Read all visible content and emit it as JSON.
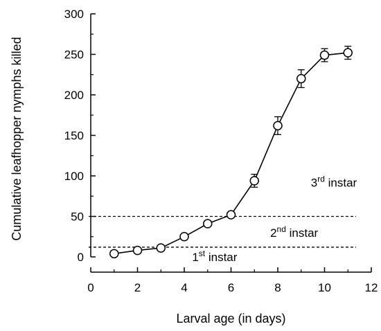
{
  "chart_data": {
    "type": "line",
    "title": "",
    "xlabel": "Larval age (in days)",
    "ylabel": "Cumulative leafhopper nymphs killed",
    "xlim": [
      0,
      12
    ],
    "ylim": [
      0,
      300
    ],
    "xticks": [
      0,
      2,
      4,
      6,
      8,
      10,
      12
    ],
    "yticks": [
      0,
      50,
      100,
      150,
      200,
      250,
      300
    ],
    "grid": false,
    "legend": "none",
    "series": [
      {
        "x": [
          1,
          2,
          3,
          4,
          5,
          6,
          7,
          8,
          9,
          10,
          11
        ],
        "y": [
          4,
          8,
          11,
          25,
          41,
          52,
          94,
          162,
          220,
          249,
          252
        ],
        "error": [
          0,
          0,
          0,
          0,
          0,
          0,
          8,
          11,
          11,
          8,
          8
        ],
        "marker": "open-circle",
        "color": "#000000"
      }
    ],
    "reference_lines": [
      {
        "axis": "y",
        "value": 12,
        "style": "dashed"
      },
      {
        "axis": "y",
        "value": 50,
        "style": "dashed"
      }
    ],
    "annotations": [
      {
        "id": "first",
        "base": "1",
        "sup": "st",
        "text": " instar",
        "x": 5.3,
        "y": 0
      },
      {
        "id": "second",
        "base": "2",
        "sup": "nd",
        "text": " instar",
        "x": 8.7,
        "y": 30
      },
      {
        "id": "third",
        "base": "3",
        "sup": "rd",
        "text": " instar",
        "x": 10.4,
        "y": 92
      }
    ]
  }
}
